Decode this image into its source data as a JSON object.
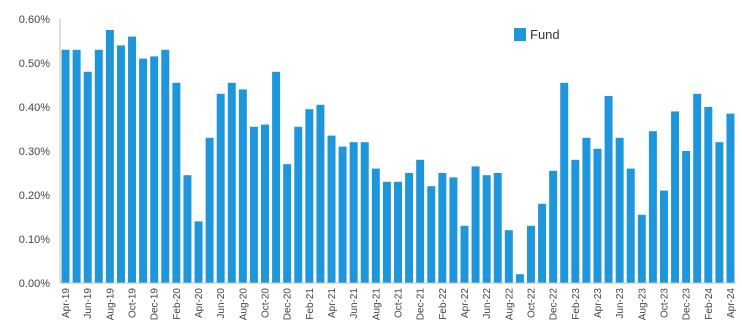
{
  "chart_data": {
    "type": "bar",
    "title": "",
    "xlabel": "",
    "ylabel": "",
    "ylim": [
      0,
      0.6
    ],
    "yticks": [
      "0.00%",
      "0.10%",
      "0.20%",
      "0.30%",
      "0.40%",
      "0.50%",
      "0.60%"
    ],
    "grid": false,
    "legend_position": "top-right",
    "bar_color": "#1e96dc",
    "series": [
      {
        "name": "Fund",
        "values": [
          0.53,
          0.53,
          0.48,
          0.53,
          0.575,
          0.54,
          0.56,
          0.51,
          0.515,
          0.53,
          0.455,
          0.245,
          0.14,
          0.33,
          0.43,
          0.455,
          0.44,
          0.355,
          0.36,
          0.48,
          0.27,
          0.355,
          0.395,
          0.405,
          0.335,
          0.31,
          0.32,
          0.32,
          0.26,
          0.23,
          0.23,
          0.25,
          0.28,
          0.22,
          0.25,
          0.24,
          0.13,
          0.265,
          0.245,
          0.25,
          0.12,
          0.02,
          0.13,
          0.18,
          0.255,
          0.455,
          0.28,
          0.33,
          0.305,
          0.425,
          0.33,
          0.26,
          0.155,
          0.345,
          0.21,
          0.39,
          0.3,
          0.43,
          0.4,
          0.32,
          0.385
        ]
      }
    ],
    "categories": [
      "Apr-19",
      "",
      "Jun-19",
      "",
      "Aug-19",
      "",
      "Oct-19",
      "",
      "Dec-19",
      "",
      "Feb-20",
      "",
      "Apr-20",
      "",
      "Jun-20",
      "",
      "Aug-20",
      "",
      "Oct-20",
      "",
      "Dec-20",
      "",
      "Feb-21",
      "",
      "Apr-21",
      "",
      "Jun-21",
      "",
      "Aug-21",
      "",
      "Oct-21",
      "",
      "Dec-21",
      "",
      "Feb-22",
      "",
      "Apr-22",
      "",
      "Jun-22",
      "",
      "Aug-22",
      "",
      "Oct-22",
      "",
      "Dec-22",
      "",
      "Feb-23",
      "",
      "Apr-23",
      "",
      "Jun-23",
      "",
      "Aug-23",
      "",
      "Oct-23",
      "",
      "Dec-23",
      "",
      "Feb-24",
      "",
      "Apr-24"
    ]
  }
}
